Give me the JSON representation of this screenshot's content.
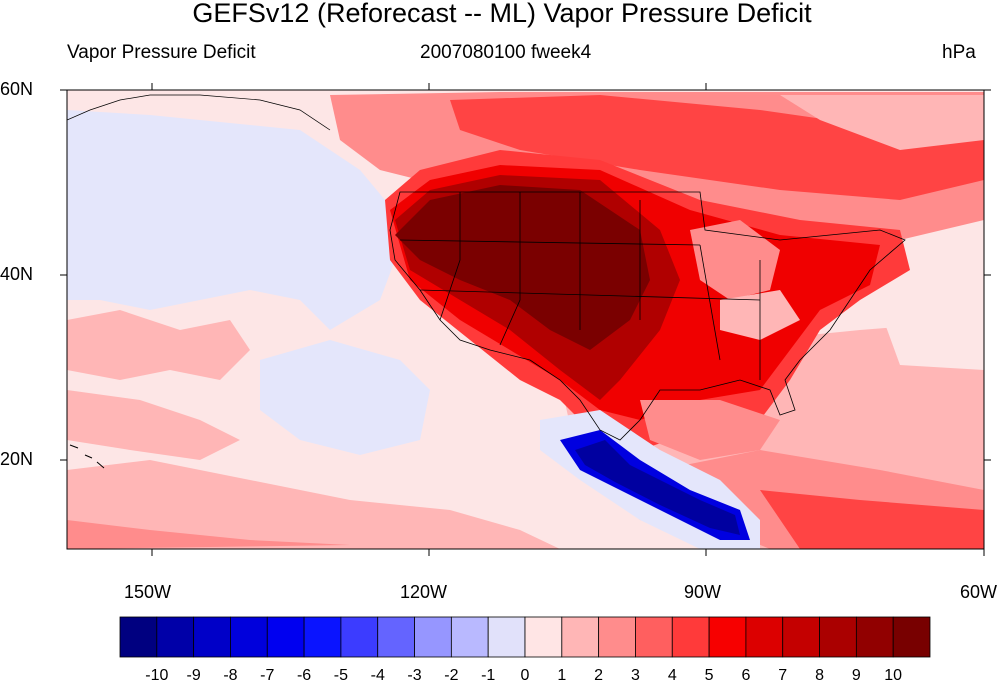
{
  "title": "GEFSv12 (Reforecast -- ML) Vapor Pressure Deficit",
  "subtitle_left": "Vapor Pressure Deficit",
  "subtitle_center": "2007080100 fweek4",
  "subtitle_right": "hPa",
  "lat_labels": [
    "60N",
    "40N",
    "20N"
  ],
  "lon_labels": [
    "150W",
    "120W",
    "90W",
    "60W"
  ],
  "colorbar": {
    "labels": [
      "-10",
      "-9",
      "-8",
      "-7",
      "-6",
      "-5",
      "-4",
      "-3",
      "-2",
      "-1",
      "0",
      "1",
      "2",
      "3",
      "4",
      "5",
      "6",
      "7",
      "8",
      "9",
      "10"
    ],
    "colors": [
      "#000080",
      "#0000a8",
      "#0000c8",
      "#0000dc",
      "#0000f0",
      "#0a14ff",
      "#3c3cff",
      "#6464ff",
      "#9696ff",
      "#b9b9ff",
      "#e1e1fa",
      "#ffe5e5",
      "#ffb6b6",
      "#ff8c8c",
      "#ff5f5f",
      "#ff3a3a",
      "#f70000",
      "#dc0000",
      "#c40000",
      "#aa0000",
      "#910000",
      "#780000"
    ]
  },
  "map_colors": {
    "ocean_pink": "#fde6e6",
    "light_red": "#ffb6b6",
    "mid_red": "#ff8c8c",
    "red": "#ff4444",
    "bright_red": "#f00000",
    "dark_red": "#b00000",
    "darkest_red": "#7a0000",
    "light_blue": "#e4e6fb",
    "blue": "#0000e0",
    "dark_blue": "#0000a0"
  }
}
